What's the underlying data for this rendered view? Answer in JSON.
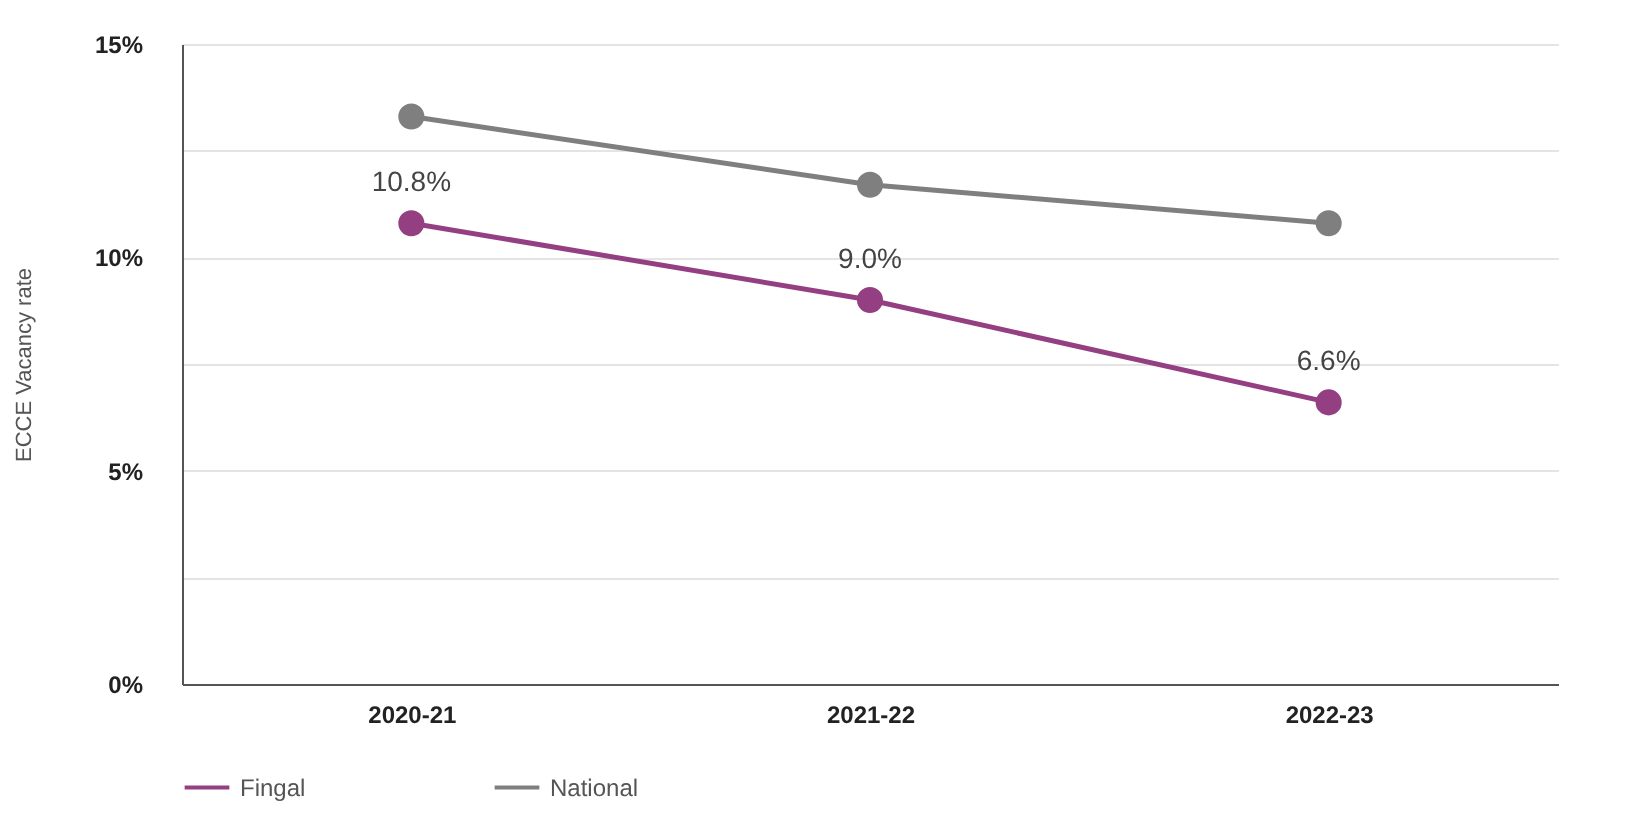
{
  "chart_data": {
    "type": "line",
    "ylabel": "ECCE Vacancy rate",
    "categories": [
      "2020-21",
      "2021-22",
      "2022-23"
    ],
    "series": [
      {
        "name": "Fingal",
        "color": "#953f83",
        "values": [
          10.8,
          9.0,
          6.6
        ],
        "value_labels": [
          "10.8%",
          "9.0%",
          "6.6%"
        ]
      },
      {
        "name": "National",
        "color": "#7f7f7f",
        "values": [
          13.3,
          11.7,
          10.8
        ]
      }
    ],
    "ylim": [
      0,
      15
    ],
    "yticks": [
      {
        "value": 0,
        "label": "0%"
      },
      {
        "value": 2.5,
        "label": null
      },
      {
        "value": 5,
        "label": "5%"
      },
      {
        "value": 7.5,
        "label": null
      },
      {
        "value": 10,
        "label": "10%"
      },
      {
        "value": 12.5,
        "label": null
      },
      {
        "value": 15,
        "label": "15%"
      }
    ],
    "grid": "y",
    "legend": "bottom",
    "marker": "circle",
    "line_style": "solid"
  }
}
